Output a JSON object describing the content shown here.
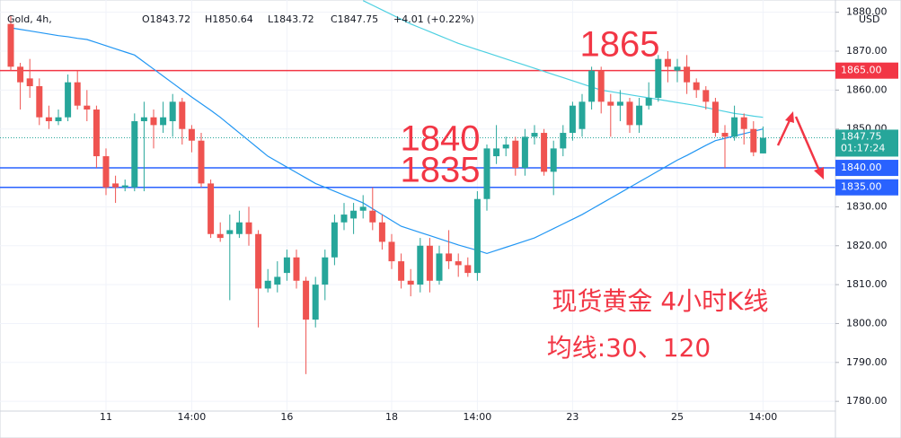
{
  "header": {
    "symbol": "Gold, 4h,",
    "ohlc": [
      "O1843.72",
      "H1850.64",
      "L1843.72",
      "C1847.75",
      "+4.01 (+0.22%)"
    ],
    "currency": "USD"
  },
  "chart_data": {
    "type": "candlestick",
    "categories": [
      null,
      null,
      null,
      null,
      null,
      null,
      null,
      null,
      null,
      null,
      "11",
      null,
      null,
      null,
      null,
      null,
      null,
      null,
      null,
      "14:00",
      null,
      null,
      null,
      null,
      null,
      null,
      null,
      null,
      null,
      "16",
      null,
      null,
      null,
      null,
      null,
      null,
      null,
      null,
      null,
      null,
      "18",
      null,
      null,
      null,
      null,
      null,
      null,
      null,
      null,
      "14:00",
      null,
      null,
      null,
      null,
      null,
      null,
      null,
      null,
      null,
      "23",
      null,
      null,
      null,
      null,
      null,
      null,
      null,
      null,
      null,
      null,
      "25",
      null,
      null,
      null,
      null,
      null,
      null,
      null,
      null,
      "14:00"
    ],
    "open": [
      1877,
      1866,
      1863,
      1861,
      1853,
      1852,
      1853,
      1862,
      1856,
      1855,
      1843,
      1836,
      1835,
      1835,
      1852,
      1853,
      1851,
      1852,
      1857,
      1850,
      1847,
      1836,
      1823,
      1823,
      1823,
      1826,
      1823,
      1809,
      1810,
      1813,
      1817,
      1811,
      1801,
      1810,
      1817,
      1826,
      1827,
      1829,
      1829,
      1826,
      1821,
      1816,
      1811,
      1810,
      1820,
      1811,
      1818,
      1816,
      1815,
      1813,
      1832,
      1843,
      1845,
      1847,
      1840,
      1848,
      1849,
      1839,
      1845,
      1849,
      1850,
      1857,
      1865,
      1857,
      1856,
      1857,
      1851,
      1856,
      1858,
      1868,
      1865,
      1866,
      1862,
      1860,
      1857,
      1849,
      1848,
      1853,
      1850,
      1843.72
    ],
    "high": [
      1879,
      1867,
      1868,
      1863,
      1856,
      1855,
      1864,
      1865,
      1860,
      1856,
      1845,
      1838,
      1837,
      1854,
      1857,
      1855,
      1857,
      1859,
      1858,
      1851,
      1849,
      1837,
      1826,
      1828,
      1829,
      1830,
      1824,
      1814,
      1816,
      1819,
      1819,
      1812,
      1812,
      1819,
      1828,
      1831,
      1831,
      1833,
      1835,
      1828,
      1823,
      1818,
      1814,
      1822,
      1822,
      1820,
      1824,
      1818,
      1817,
      1834,
      1846,
      1851,
      1848,
      1848,
      1850,
      1851,
      1850,
      1847,
      1851,
      1857,
      1859,
      1866,
      1866,
      1859,
      1860,
      1858,
      1858,
      1862,
      1869,
      1870,
      1868,
      1869,
      1863,
      1861,
      1858,
      1851,
      1856,
      1854,
      1852,
      1850.64
    ],
    "low": [
      1865,
      1855,
      1858,
      1851,
      1850,
      1851,
      1852,
      1855,
      1852,
      1840,
      1833,
      1831,
      1834,
      1834,
      1834,
      1845,
      1849,
      1848,
      1846,
      1844,
      1835,
      1822,
      1821,
      1806,
      1822,
      1820,
      1799,
      1808,
      1808,
      1811,
      1809,
      1787,
      1799,
      1806,
      1815,
      1824,
      1823,
      1827,
      1824,
      1819,
      1814,
      1809,
      1807,
      1808,
      1808,
      1810,
      1814,
      1812,
      1812,
      1811,
      1829,
      1841,
      1843,
      1838,
      1838,
      1846,
      1838,
      1833,
      1843,
      1847,
      1848,
      1855,
      1854,
      1848,
      1852,
      1849,
      1849,
      1855,
      1857,
      1862,
      1862,
      1859,
      1858,
      1855,
      1848,
      1840,
      1847,
      1846,
      1843,
      1843.72
    ],
    "close": [
      1866,
      1862,
      1861,
      1853,
      1852,
      1853,
      1862,
      1856,
      1855,
      1843,
      1835,
      1835,
      1835.5,
      1852,
      1853,
      1851,
      1853,
      1857,
      1850,
      1847,
      1836,
      1823,
      1822,
      1824,
      1826,
      1823,
      1809,
      1811,
      1812,
      1817,
      1811,
      1801,
      1810,
      1817,
      1826,
      1828,
      1829,
      1830,
      1826,
      1821,
      1816,
      1811,
      1810,
      1820,
      1811,
      1818,
      1816,
      1815,
      1813,
      1832,
      1845,
      1845,
      1846,
      1840,
      1848,
      1849,
      1839,
      1845,
      1849,
      1856,
      1857,
      1865,
      1857,
      1856,
      1857,
      1851,
      1856,
      1858,
      1868,
      1866,
      1866,
      1862,
      1860,
      1857,
      1849,
      1848,
      1853,
      1850,
      1844,
      1847.75
    ],
    "up_color": "#26a69a",
    "down_color": "#ef5350",
    "series": [
      {
        "type": "line",
        "color": "#2196f3",
        "values": [
          1876,
          1875.6,
          1875.2,
          1874.8,
          1874.4,
          1874,
          1873.7,
          1873.3,
          1873,
          1872.2,
          1871.4,
          1870.6,
          1869.8,
          1869,
          1867.2,
          1865.4,
          1863.6,
          1861.8,
          1860,
          1858.2,
          1856.5,
          1854.8,
          1853,
          1851,
          1849,
          1847,
          1845,
          1843,
          1841.6,
          1840.2,
          1838.8,
          1837.4,
          1836,
          1835,
          1834,
          1833,
          1832,
          1831,
          1829.5,
          1828,
          1826.5,
          1825,
          1824.2,
          1823.4,
          1822.6,
          1821.8,
          1821,
          1820.2,
          1819.5,
          1818.8,
          1818,
          1818.8,
          1819.6,
          1820.4,
          1821.2,
          1822,
          1823.2,
          1824.4,
          1825.6,
          1826.8,
          1828,
          1829.4,
          1830.8,
          1832.2,
          1833.6,
          1835,
          1836.4,
          1837.8,
          1839.2,
          1840.6,
          1842,
          1843.2,
          1844.5,
          1845.8,
          1847,
          1847.6,
          1848.2,
          1848.8,
          1849.4,
          1850
        ]
      },
      {
        "type": "line",
        "color": "#4dd0e1",
        "values": [
          null,
          null,
          null,
          null,
          null,
          null,
          null,
          null,
          null,
          null,
          null,
          null,
          null,
          null,
          null,
          null,
          null,
          null,
          null,
          null,
          null,
          null,
          null,
          null,
          null,
          null,
          null,
          null,
          null,
          null,
          null,
          null,
          null,
          null,
          null,
          null,
          null,
          1883,
          1881.8,
          1880.6,
          1879.4,
          1878.2,
          1877,
          1876,
          1875,
          1874,
          1873,
          1872,
          1871.2,
          1870.4,
          1869.6,
          1868.8,
          1868,
          1867.2,
          1866.4,
          1865.6,
          1864.8,
          1864,
          1863.2,
          1862.4,
          1861.6,
          1860.8,
          1860,
          1859.6,
          1859.2,
          1858.8,
          1858.4,
          1858,
          1857.6,
          1857.2,
          1856.8,
          1856.4,
          1856,
          1855.5,
          1855,
          1854.5,
          1854,
          1853.7,
          1853.3,
          1853
        ]
      }
    ],
    "levels": [
      {
        "value": 1865,
        "label": "1865.00",
        "color": "#f23645"
      },
      {
        "value": 1840,
        "label": "1840.00",
        "color": "#2962ff"
      },
      {
        "value": 1835,
        "label": "1835.00",
        "color": "#2962ff"
      }
    ],
    "last_price": {
      "value": 1847.75,
      "label": "1847.75",
      "countdown": "01:17:24",
      "color": "#26a69a"
    },
    "ylim": [
      1777.5,
      1883.15
    ],
    "yticks": [
      {
        "value": 1780,
        "label": "1780.00"
      },
      {
        "value": 1790,
        "label": "1790.00"
      },
      {
        "value": 1800,
        "label": "1800.00"
      },
      {
        "value": 1810,
        "label": "1810.00"
      },
      {
        "value": 1820,
        "label": "1820.00"
      },
      {
        "value": 1830,
        "label": "1830.00"
      },
      {
        "value": 1840,
        "label": "1840.00"
      },
      {
        "value": 1850,
        "label": "1850.00"
      },
      {
        "value": 1860,
        "label": "1860.00"
      },
      {
        "value": 1870,
        "label": "1870.00"
      },
      {
        "value": 1880,
        "label": "1880.00"
      }
    ],
    "grid": true,
    "annotations": [
      "1865",
      "1840",
      "1835",
      "现货黄金 4小时K线",
      "均线:30、120"
    ]
  }
}
